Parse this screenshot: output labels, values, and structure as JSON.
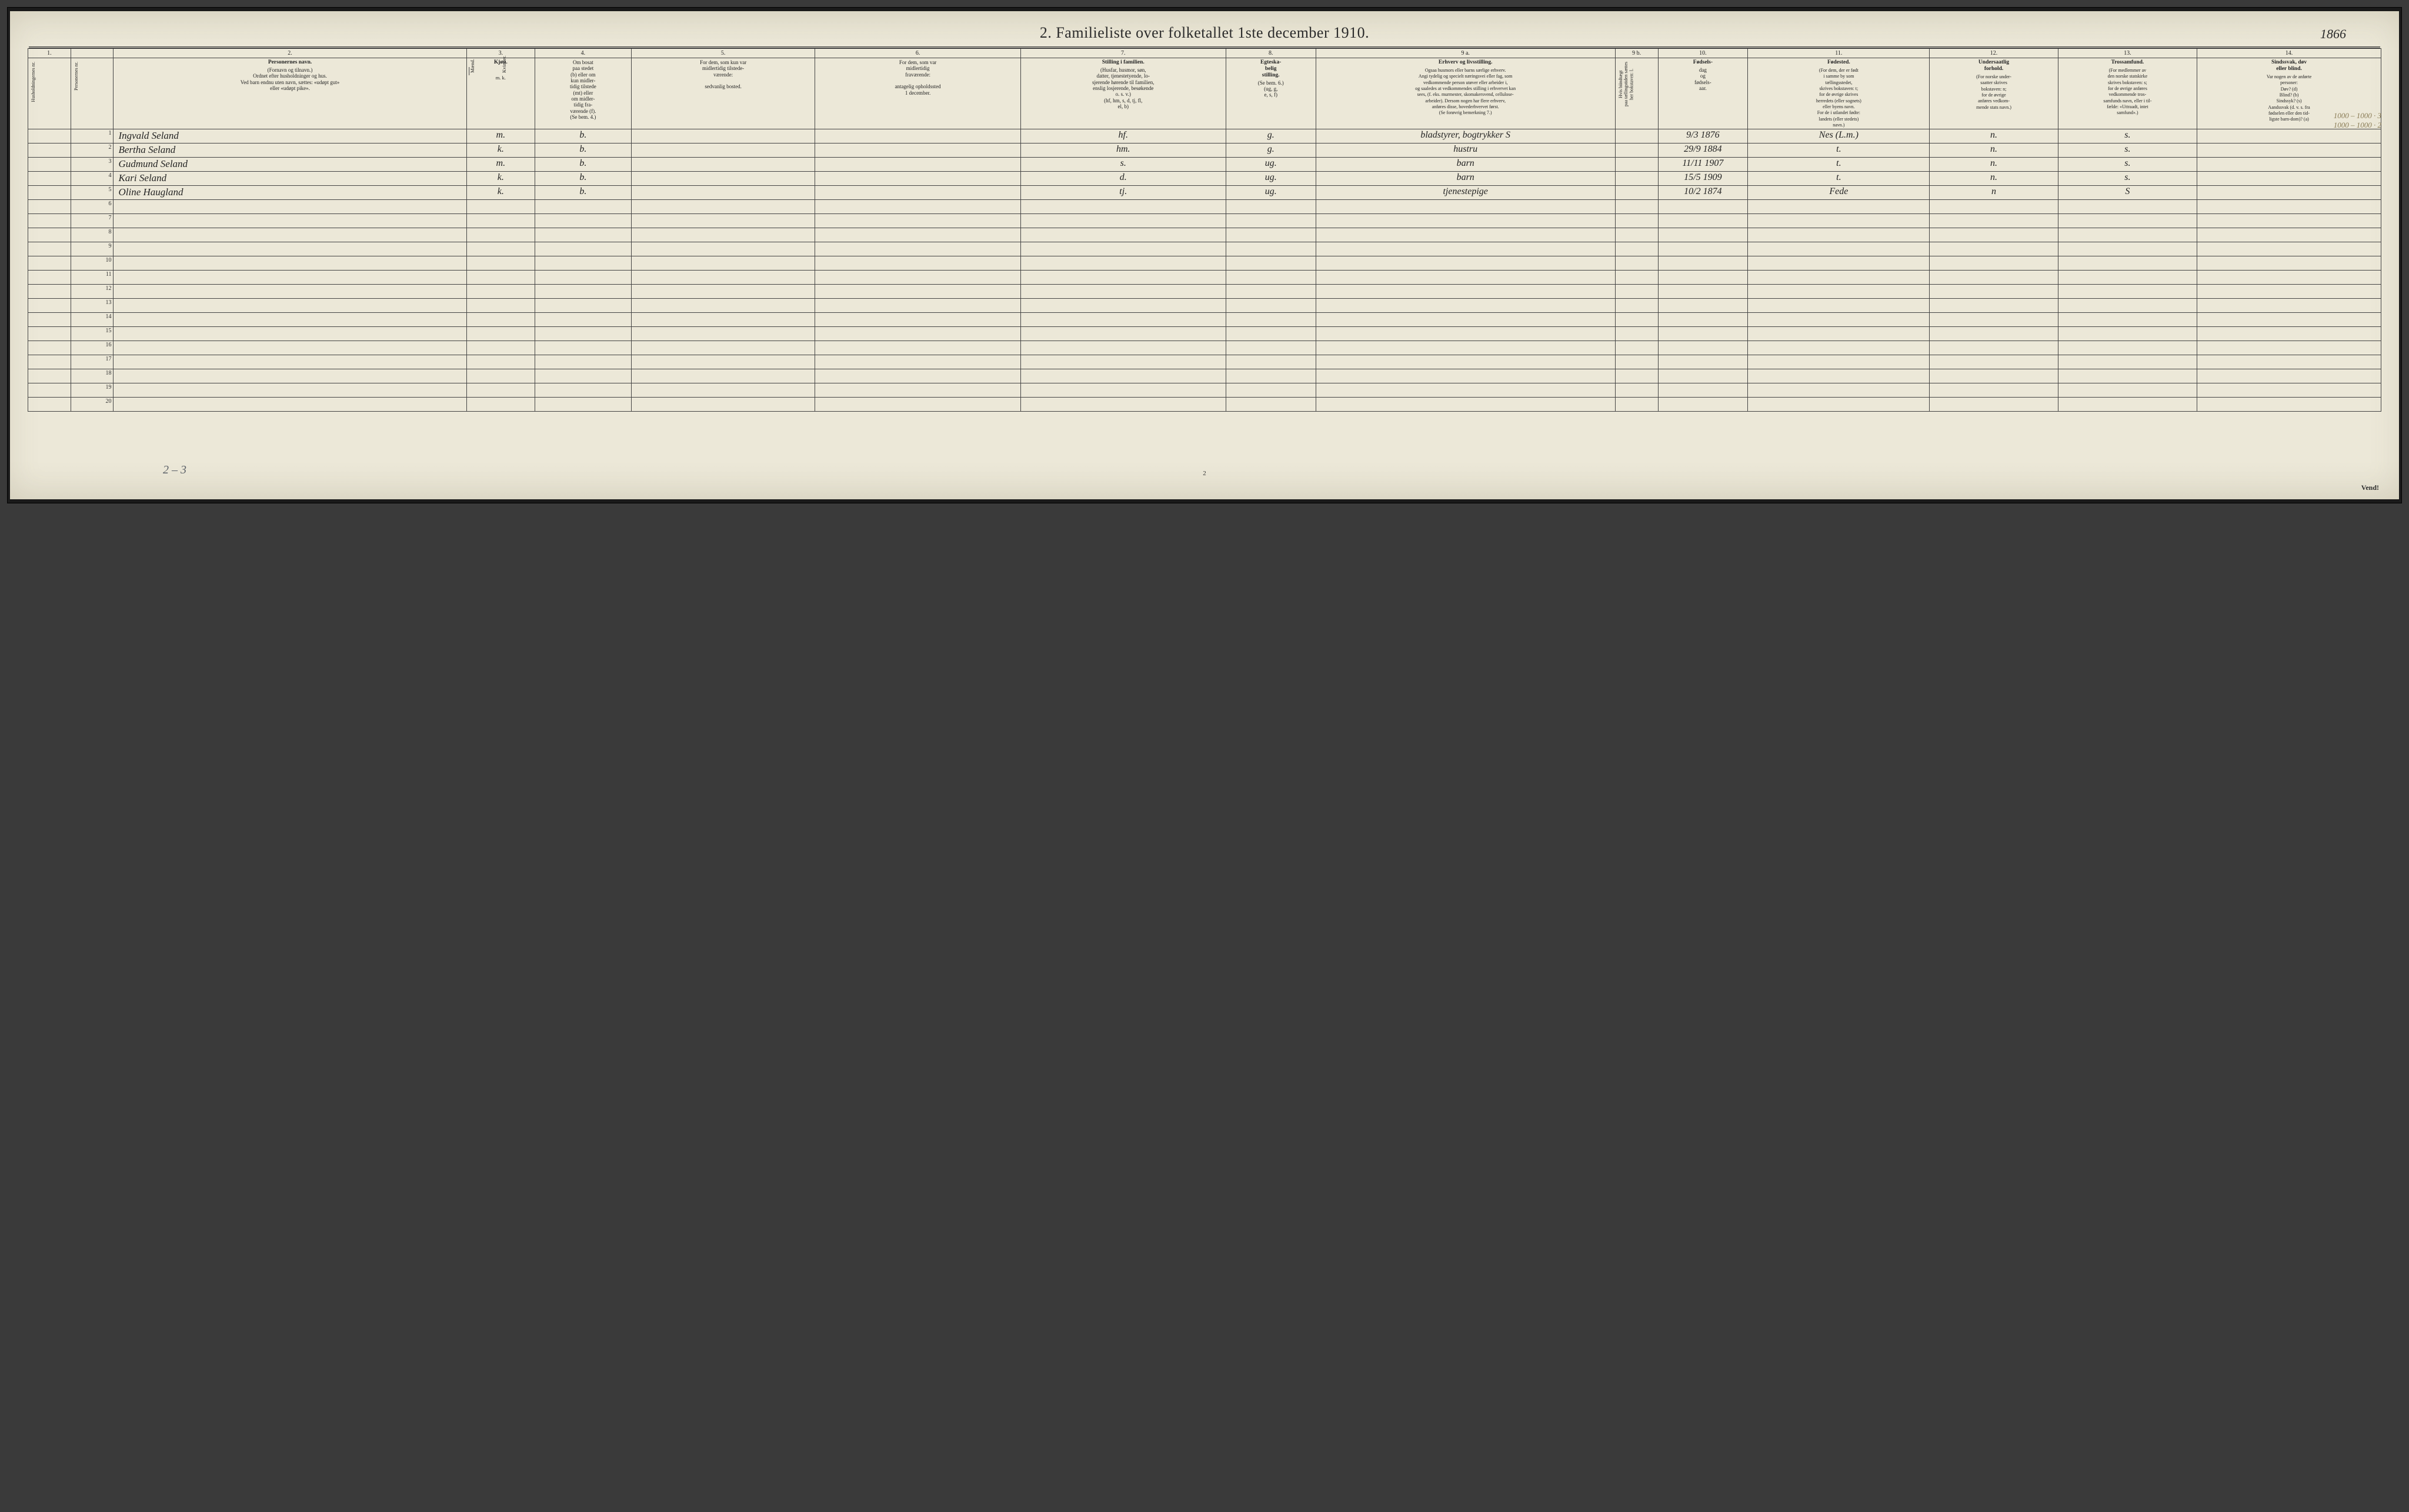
{
  "scan": {
    "background_color": "#3a3a3a",
    "page_color": "#e8e4d4"
  },
  "title": "2.   Familieliste over folketallet 1ste december 1910.",
  "handwritten_top_right": "1866",
  "column_numbers": [
    "1.",
    "",
    "2.",
    "3.",
    "4.",
    "5.",
    "6.",
    "7.",
    "8.",
    "9 a.",
    "9 b.",
    "10.",
    "11.",
    "12.",
    "13.",
    "14."
  ],
  "column_widths_pct": [
    2.0,
    2.0,
    16.5,
    3.2,
    4.5,
    8.6,
    9.6,
    9.6,
    4.2,
    14.0,
    2.0,
    4.2,
    8.5,
    6.0,
    6.5,
    8.6
  ],
  "headers": {
    "c1": "Husholdningernes nr.",
    "c1b": "Personernes nr.",
    "c2_bold": "Personernes navn.",
    "c2_sub": "(Fornavn og tilnavn.)\nOrdnet efter husholdninger og hus.\nVed barn endnu uten navn, sættes: «udøpt gut»\neller «udøpt pike».",
    "c3_bold": "Kjøn.",
    "c3_sub_left": "Mænd.",
    "c3_sub_right": "Kvinder.",
    "c3_foot": "m.   k.",
    "c4": "Om bosat\npaa stedet\n(b) eller om\nkun midler-\ntidig tilstede\n(mt) eller\nom midler-\ntidig fra-\nværende (f).\n(Se bem. 4.)",
    "c5": "For dem, som kun var\nmidlertidig tilstede-\nværende:\n\nsedvanlig bosted.",
    "c6": "For dem, som var\nmidlertidig\nfraværende:\n\nantagelig opholdssted\n1 december.",
    "c7_bold": "Stilling i familien.",
    "c7_sub": "(Husfar, husmor, søn,\ndatter, tjenestetyende, lo-\nsjerende hørende til familien,\nenslig losjerende, besøkende\no. s. v.)\n(hf, hm, s, d, tj, fl,\nel, b)",
    "c8_bold": "Egteska-\nbelig\nstilling.",
    "c8_sub": "(Se bem. 6.)\n(ug, g,\ne, s, f)",
    "c9a_bold": "Erhverv og livsstilling.",
    "c9a_sub": "Ogsaa husmors eller barns særlige erhverv.\nAngi tydelig og specielt næringsvei eller fag, som\nvedkommende person utøver eller arbeider i,\nog saaledes at vedkommendes stilling i erhvervet kan\nsees, (f. eks. murmester, skomakersvend, cellulose-\narbeider). Dersom nogen har flere erhverv,\nanføres disse, hovederhvervet først.\n(Se forøvrig bemerkning 7.)",
    "c9b": "Hvis biindtægt\npaa tællingstiden sættes\nher bokstaven: l.",
    "c10_bold": "Fødsels-",
    "c10_sub": "dag\nog\nfødsels-\naar.",
    "c11_bold": "Fødested.",
    "c11_sub": "(For dem, der er født\ni samme by som\ntællingsstedet,\nskrives bokstaven: t;\nfor de øvrige skrives\nherredets (eller sognets)\neller byens navn.\nFor de i utlandet fødte:\nlandets (eller stedets)\nnavn.)",
    "c12_bold": "Undersaatlig\nforhold.",
    "c12_sub": "(For norske under-\nsaatter skrives\nbokstaven: n;\nfor de øvrige\nanføres vedkom-\nmende stats navn.)",
    "c13_bold": "Trossamfund.",
    "c13_sub": "(For medlemmer av\nden norske statskirke\nskrives bokstaven: s;\nfor de øvrige anføres\nvedkommende tros-\nsamfunds navn, eller i til-\nfælde: «Uttraadt, intet\nsamfund».)",
    "c14_bold": "Sindssvak, døv\neller blind.",
    "c14_sub": "Var nogen av de anførte\npersoner:\nDøv?        (d)\nBlind?      (b)\nSindssyk?  (s)\nAandssvak (d. v. s. fra\nfødselen eller den tid-\nligste barn-dom)? (a)"
  },
  "rows": [
    {
      "n": "1",
      "name": "Ingvald Seland",
      "sex": "m.",
      "res": "b.",
      "c7": "hf.",
      "c8": "g.",
      "c9a": "bladstyrer, bogtrykker S",
      "c10": "9/3 1876",
      "c11": "Nes (L.m.)",
      "c12": "n.",
      "c13": "s."
    },
    {
      "n": "2",
      "name": "Bertha Seland",
      "sex": "k.",
      "res": "b.",
      "c7": "hm.",
      "c8": "g.",
      "c9a": "hustru",
      "c10": "29/9 1884",
      "c11": "t.",
      "c12": "n.",
      "c13": "s."
    },
    {
      "n": "3",
      "name": "Gudmund Seland",
      "sex": "m.",
      "res": "b.",
      "c7": "s.",
      "c8": "ug.",
      "c9a": "barn",
      "c10": "11/11 1907",
      "c11": "t.",
      "c12": "n.",
      "c13": "s."
    },
    {
      "n": "4",
      "name": "Kari Seland",
      "sex": "k.",
      "res": "b.",
      "c7": "d.",
      "c8": "ug.",
      "c9a": "barn",
      "c10": "15/5 1909",
      "c11": "t.",
      "c12": "n.",
      "c13": "s."
    },
    {
      "n": "5",
      "name": "Oline Haugland",
      "sex": "k.",
      "res": "b.",
      "c7": "tj.",
      "c8": "ug.",
      "c9a": "tjenestepige",
      "c10": "10/2 1874",
      "c11": "Fede",
      "c12": "n",
      "c13": "S"
    }
  ],
  "empty_rows": [
    "6",
    "7",
    "8",
    "9",
    "10",
    "11",
    "12",
    "13",
    "14",
    "15",
    "16",
    "17",
    "18",
    "19",
    "20"
  ],
  "pencil_bottom": "2 – 3",
  "pencil_right_lines": [
    "1000 – 1000 · 3",
    "1000 – 1000 · 2"
  ],
  "page_number": "2",
  "vend": "Vend!",
  "colors": {
    "ink": "#2b2b2b",
    "rule": "#333333",
    "pencil": "#5a5f66",
    "faded_ink": "#8a7c55"
  }
}
